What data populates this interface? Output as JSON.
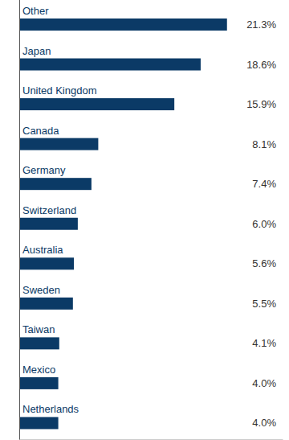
{
  "chart_data": {
    "type": "bar",
    "orientation": "horizontal",
    "categories": [
      "Other",
      "Japan",
      "United Kingdom",
      "Canada",
      "Germany",
      "Switzerland",
      "Australia",
      "Sweden",
      "Taiwan",
      "Mexico",
      "Netherlands"
    ],
    "values": [
      21.3,
      18.6,
      15.9,
      8.1,
      7.4,
      6.0,
      5.6,
      5.5,
      4.1,
      4.0,
      4.0
    ],
    "value_labels": [
      "21.3%",
      "18.6%",
      "15.9%",
      "8.1%",
      "7.4%",
      "6.0%",
      "5.6%",
      "5.5%",
      "4.1%",
      "4.0%",
      "4.0%"
    ],
    "color": "#0b3a66",
    "xlim": [
      0,
      27
    ],
    "data_labels": true,
    "tick_labels": false,
    "grid": false
  }
}
